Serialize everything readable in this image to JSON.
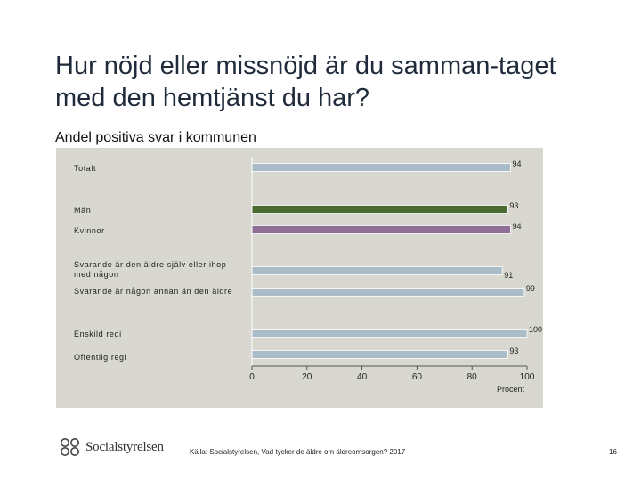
{
  "slide": {
    "title": "Hur nöjd eller missnöjd är du samman-taget med den hemtjänst du har?",
    "subtitle": "Andel positiva svar i kommunen",
    "source": "Källa: Socialstyrelsen, Vad tycker de äldre om äldreomsorgen? 2017",
    "page_number": "16",
    "logo_text": "Socialstyrelsen"
  },
  "colors": {
    "panel_bg": "#d8d8d0",
    "bar_default": "#a9bcc8",
    "bar_men": "#4a6b2f",
    "bar_women": "#8f6f95"
  },
  "chart_data": {
    "type": "bar",
    "orientation": "horizontal",
    "categories": [
      "Totalt",
      "Män",
      "Kvinnor",
      "Svarande är den äldre själv eller ihop med någon",
      "Svarande är någon annan än den äldre",
      "Enskild regi",
      "Offentlig regi"
    ],
    "values": [
      94,
      93,
      94,
      91,
      99,
      100,
      93
    ],
    "bar_colors": [
      "#a9bcc8",
      "#4a6b2f",
      "#8f6f95",
      "#a9bcc8",
      "#a9bcc8",
      "#a9bcc8",
      "#a9bcc8"
    ],
    "xlabel": "Procent",
    "xlim": [
      0,
      100
    ],
    "xticks": [
      0,
      20,
      40,
      60,
      80,
      100
    ],
    "grid": false,
    "legend": "none"
  }
}
